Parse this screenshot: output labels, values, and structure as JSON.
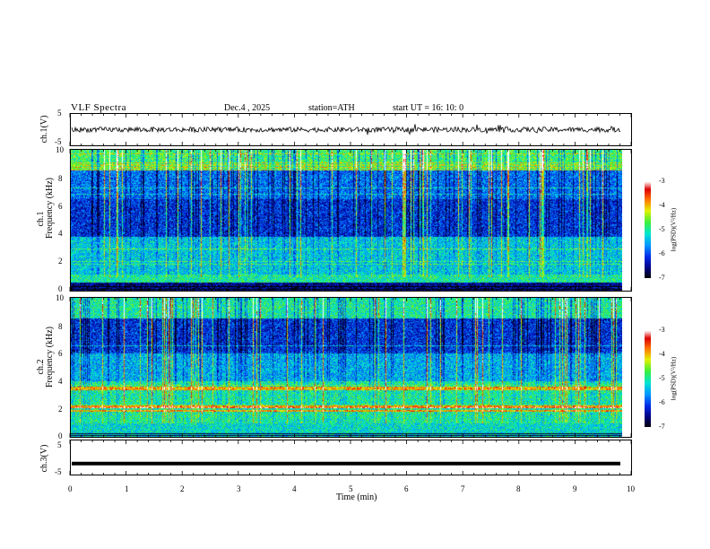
{
  "header": {
    "title": "VLF  Spectra",
    "date": "Dec.4  , 2025",
    "station": "station=ATH",
    "start_ut": "start  UT  =   16: 10: 0"
  },
  "chart_data": [
    {
      "type": "line",
      "name": "ch1-waveform",
      "ylabel": "ch.1(V)",
      "ylim": [
        -5,
        5
      ],
      "yticks": [
        "5",
        "-5"
      ]
    },
    {
      "type": "heatmap",
      "name": "ch1-spectrogram",
      "ylabel_top": "ch.1",
      "ylabel": "Frequency  (kHz)",
      "ylim": [
        0,
        10
      ],
      "yticks": [
        "0",
        "2",
        "4",
        "6",
        "8",
        "10"
      ],
      "colorbar": {
        "label": "log(PSD)(V²/Hz)",
        "range": [
          -7,
          -3
        ],
        "ticks": [
          "-3",
          "-4",
          "-5",
          "-6",
          "-7"
        ]
      }
    },
    {
      "type": "heatmap",
      "name": "ch2-spectrogram",
      "ylabel_top": "ch.2",
      "ylabel": "Frequency  (kHz)",
      "ylim": [
        0,
        10
      ],
      "yticks": [
        "0",
        "2",
        "4",
        "6",
        "8",
        "10"
      ],
      "colorbar": {
        "label": "log(PSD)(V²/Hz)",
        "range": [
          -7,
          -3
        ],
        "ticks": [
          "-3",
          "-4",
          "-5",
          "-6",
          "-7"
        ]
      }
    },
    {
      "type": "line",
      "name": "ch3-waveform",
      "ylabel": "ch.3(V)",
      "ylim": [
        -5,
        5
      ],
      "yticks": [
        "5",
        "-5"
      ]
    }
  ],
  "xaxis": {
    "label": "Time  (min)",
    "xlim": [
      0,
      10
    ],
    "ticks": [
      "0",
      "1",
      "2",
      "3",
      "4",
      "5",
      "6",
      "7",
      "8",
      "9",
      "10"
    ]
  }
}
